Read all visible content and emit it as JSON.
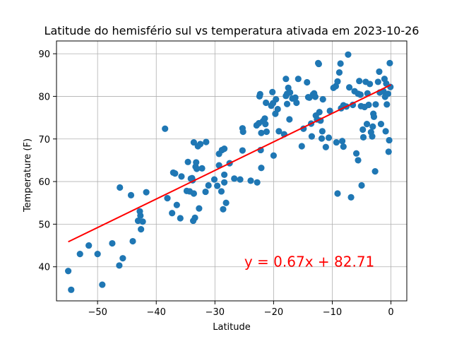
{
  "chart_data": {
    "type": "scatter",
    "title": "Latitude do hemisfério sul vs temperatura ativada em 2023-10-26",
    "xlabel": "Latitude",
    "ylabel": "Temperature (F)",
    "xlim": [
      -57,
      2.7
    ],
    "ylim": [
      32,
      93
    ],
    "xticks": [
      -50,
      -40,
      -30,
      -20,
      -10,
      0
    ],
    "xtick_labels": [
      "−50",
      "−40",
      "−30",
      "−20",
      "−10",
      "0"
    ],
    "yticks": [
      40,
      50,
      60,
      70,
      80,
      90
    ],
    "ytick_labels": [
      "40",
      "50",
      "60",
      "70",
      "80",
      "90"
    ],
    "grid": true,
    "point_color": "#1f77b4",
    "line_color": "#ff0000",
    "regression": {
      "slope": 0.67,
      "intercept": 82.71,
      "x_range": [
        -55,
        0
      ],
      "label": "y = 0.67x + 82.71",
      "label_at": [
        -25,
        40
      ]
    },
    "points": [
      [
        -55,
        39
      ],
      [
        -54.5,
        34.6
      ],
      [
        -53,
        43
      ],
      [
        -51.5,
        45
      ],
      [
        -50,
        43
      ],
      [
        -49.2,
        35.8
      ],
      [
        -47.5,
        45.5
      ],
      [
        -46.3,
        40.3
      ],
      [
        -46.2,
        58.6
      ],
      [
        -45.7,
        42
      ],
      [
        -44.3,
        56.8
      ],
      [
        -44,
        46
      ],
      [
        -43.1,
        50.8
      ],
      [
        -42.8,
        53
      ],
      [
        -42.7,
        52
      ],
      [
        -42.6,
        48.8
      ],
      [
        -42.3,
        50.6
      ],
      [
        -41.7,
        57.5
      ],
      [
        -38.5,
        72.4
      ],
      [
        -38.1,
        56.1
      ],
      [
        -37.3,
        52.6
      ],
      [
        -37.1,
        62.1
      ],
      [
        -36.8,
        61.9
      ],
      [
        -36.5,
        54.5
      ],
      [
        -35.9,
        51.4
      ],
      [
        -35.7,
        61.2
      ],
      [
        -34.8,
        57.8
      ],
      [
        -34.6,
        64.6
      ],
      [
        -34.3,
        57.7
      ],
      [
        -34.1,
        60.7
      ],
      [
        -33.9,
        60.8
      ],
      [
        -33.8,
        60.3
      ],
      [
        -33.6,
        57.2
      ],
      [
        -33.7,
        50.8
      ],
      [
        -33.4,
        51.5
      ],
      [
        -33.6,
        69.2
      ],
      [
        -33.3,
        63.5
      ],
      [
        -33.1,
        63
      ],
      [
        -33.2,
        64.5
      ],
      [
        -32.9,
        68.3
      ],
      [
        -32.7,
        53.7
      ],
      [
        -32.5,
        68.8
      ],
      [
        -32.2,
        63.1
      ],
      [
        -31.6,
        57.6
      ],
      [
        -31.5,
        69.3
      ],
      [
        -31.1,
        59.1
      ],
      [
        -30.1,
        60.5
      ],
      [
        -29.6,
        59
      ],
      [
        -29.3,
        63.8
      ],
      [
        -29.3,
        66.5
      ],
      [
        -28.9,
        57.7
      ],
      [
        -28.8,
        67.4
      ],
      [
        -28.6,
        53.5
      ],
      [
        -28.4,
        61.6
      ],
      [
        -28.4,
        59.8
      ],
      [
        -28.4,
        67.7
      ],
      [
        -28.1,
        55
      ],
      [
        -27.5,
        64.3
      ],
      [
        -26.7,
        60.7
      ],
      [
        -25.7,
        60.5
      ],
      [
        -25.3,
        72.5
      ],
      [
        -25.2,
        71.7
      ],
      [
        -25.3,
        67.3
      ],
      [
        -23.9,
        60.2
      ],
      [
        -22.9,
        73.2
      ],
      [
        -22.8,
        59.8
      ],
      [
        -22.5,
        73.7
      ],
      [
        -22.3,
        80.5
      ],
      [
        -22.1,
        71.4
      ],
      [
        -22.1,
        63.2
      ],
      [
        -22.2,
        67.4
      ],
      [
        -22.4,
        80
      ],
      [
        -21.8,
        74.2
      ],
      [
        -21.5,
        74.8
      ],
      [
        -21.4,
        73.5
      ],
      [
        -21.3,
        78.5
      ],
      [
        -21.2,
        71.7
      ],
      [
        -20.4,
        77.8
      ],
      [
        -20.2,
        81
      ],
      [
        -20.1,
        78.4
      ],
      [
        -20,
        66.1
      ],
      [
        -19.7,
        75.9
      ],
      [
        -19.6,
        79.3
      ],
      [
        -19.3,
        77
      ],
      [
        -19.1,
        71.8
      ],
      [
        -18.2,
        71.1
      ],
      [
        -17.9,
        80.1
      ],
      [
        -17.9,
        84.1
      ],
      [
        -17.7,
        80.6
      ],
      [
        -17.7,
        78.2
      ],
      [
        -17.5,
        82
      ],
      [
        -17.3,
        74.6
      ],
      [
        -17.2,
        80.9
      ],
      [
        -16.8,
        79.5
      ],
      [
        -16.3,
        79.7
      ],
      [
        -16.1,
        78.5
      ],
      [
        -15.8,
        84.1
      ],
      [
        -15.2,
        68.3
      ],
      [
        -14.9,
        72.4
      ],
      [
        -14.3,
        83.3
      ],
      [
        -14.1,
        79.8
      ],
      [
        -13.9,
        79.7
      ],
      [
        -13.6,
        73.6
      ],
      [
        -13.5,
        70.6
      ],
      [
        -13.3,
        80.4
      ],
      [
        -13.1,
        80.7
      ],
      [
        -12.9,
        79.9
      ],
      [
        -12.8,
        75.5
      ],
      [
        -12.6,
        74.6
      ],
      [
        -12.4,
        87.8
      ],
      [
        -12.3,
        87.6
      ],
      [
        -12.2,
        76.3
      ],
      [
        -12,
        74.3
      ],
      [
        -11.8,
        70.1
      ],
      [
        -11.7,
        71.8
      ],
      [
        -11.6,
        79.3
      ],
      [
        -11.1,
        68.1
      ],
      [
        -10.6,
        70.3
      ],
      [
        -10.4,
        76.6
      ],
      [
        -9.8,
        82
      ],
      [
        -9.4,
        82.4
      ],
      [
        -9.3,
        69.2
      ],
      [
        -9.1,
        57.2
      ],
      [
        -9.1,
        83.5
      ],
      [
        -8.8,
        85.6
      ],
      [
        -8.6,
        87.7
      ],
      [
        -8.5,
        77.2
      ],
      [
        -8.3,
        69.5
      ],
      [
        -8.1,
        68.2
      ],
      [
        -8.1,
        77.9
      ],
      [
        -7.6,
        77.6
      ],
      [
        -7.3,
        89.8
      ],
      [
        -7.1,
        82.1
      ],
      [
        -6.8,
        56.3
      ],
      [
        -6.5,
        78
      ],
      [
        -6.2,
        81.2
      ],
      [
        -5.9,
        66.6
      ],
      [
        -5.6,
        65
      ],
      [
        -5.6,
        80.6
      ],
      [
        -5.4,
        83.6
      ],
      [
        -5.2,
        80.4
      ],
      [
        -5.1,
        77.7
      ],
      [
        -5.0,
        59.1
      ],
      [
        -4.8,
        72.2
      ],
      [
        -4.7,
        70.4
      ],
      [
        -4.5,
        77.5
      ],
      [
        -4.3,
        83.4
      ],
      [
        -4.1,
        73.5
      ],
      [
        -4,
        80.7
      ],
      [
        -3.8,
        78
      ],
      [
        -3.6,
        82.9
      ],
      [
        -3.4,
        71.6
      ],
      [
        -3.2,
        70.6
      ],
      [
        -3.1,
        72.9
      ],
      [
        -3,
        75.9
      ],
      [
        -2.9,
        75.2
      ],
      [
        -2.7,
        62.4
      ],
      [
        -2.6,
        78.1
      ],
      [
        -2.2,
        83.4
      ],
      [
        -2.0,
        85.8
      ],
      [
        -1.9,
        80.9
      ],
      [
        -1.7,
        73.5
      ],
      [
        -1.3,
        81.2
      ],
      [
        -1.1,
        84.1
      ],
      [
        -1,
        79.9
      ],
      [
        -0.9,
        71.8
      ],
      [
        -0.8,
        83
      ],
      [
        -0.7,
        78.1
      ],
      [
        -0.5,
        80.6
      ],
      [
        -0.4,
        67
      ],
      [
        -0.3,
        69.7
      ],
      [
        -0.2,
        87.8
      ],
      [
        -0.1,
        82.2
      ]
    ]
  }
}
